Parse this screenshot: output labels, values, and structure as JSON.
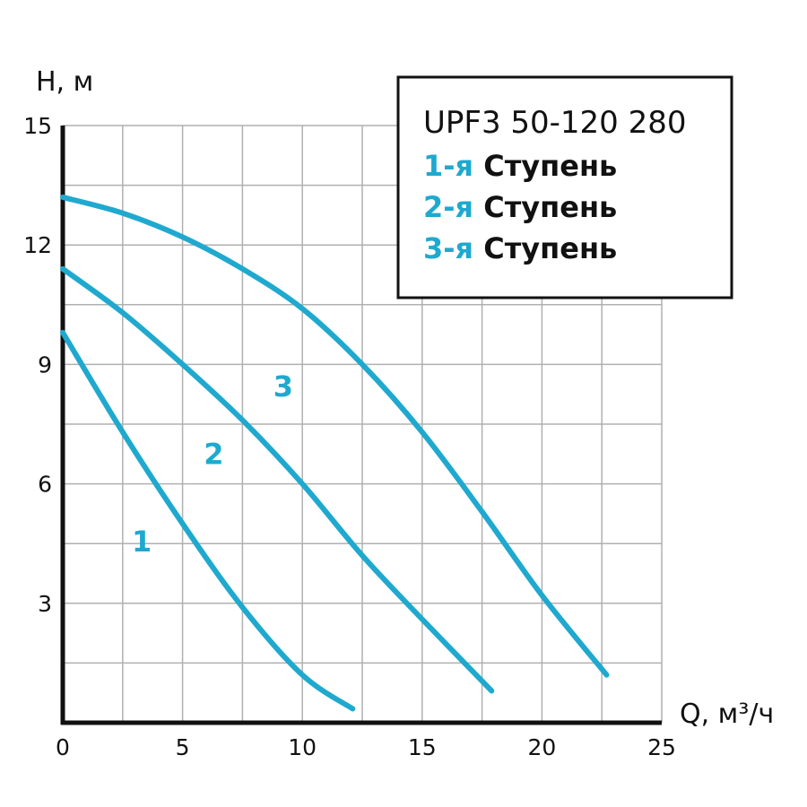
{
  "chart_data": {
    "type": "line",
    "ylabel": "H, м",
    "xlabel": "Q, м³/ч",
    "xlim": [
      0,
      25
    ],
    "ylim": [
      0,
      15
    ],
    "x_ticks": [
      "0",
      "5",
      "10",
      "15",
      "20",
      "25"
    ],
    "y_ticks": [
      "3",
      "6",
      "9",
      "12",
      "15"
    ],
    "grid": true,
    "legend_placement": "top-right",
    "legend": {
      "title": "UPF3 50-120 280",
      "entries": [
        {
          "number": "1-я",
          "word": "Ступень"
        },
        {
          "number": "2-я",
          "word": "Ступень"
        },
        {
          "number": "3-я",
          "word": "Ступень"
        }
      ]
    },
    "series": [
      {
        "name": "1",
        "x": [
          0,
          2.5,
          5,
          7.5,
          10,
          12.1
        ],
        "y": [
          9.8,
          7.3,
          5.0,
          2.9,
          1.2,
          0.35
        ]
      },
      {
        "name": "2",
        "x": [
          0,
          2.5,
          5,
          7.5,
          10,
          12.5,
          15,
          17.9
        ],
        "y": [
          11.4,
          10.3,
          9.0,
          7.6,
          6.0,
          4.2,
          2.6,
          0.8
        ]
      },
      {
        "name": "3",
        "x": [
          0,
          2.5,
          5,
          7.5,
          10,
          12.5,
          15,
          17.5,
          20,
          22.7
        ],
        "y": [
          13.2,
          12.8,
          12.2,
          11.4,
          10.4,
          9.0,
          7.3,
          5.3,
          3.2,
          1.2
        ]
      }
    ],
    "colors": {
      "curve": "#1fa9cf",
      "grid": "#b0b0b0",
      "axis": "#111111"
    }
  }
}
